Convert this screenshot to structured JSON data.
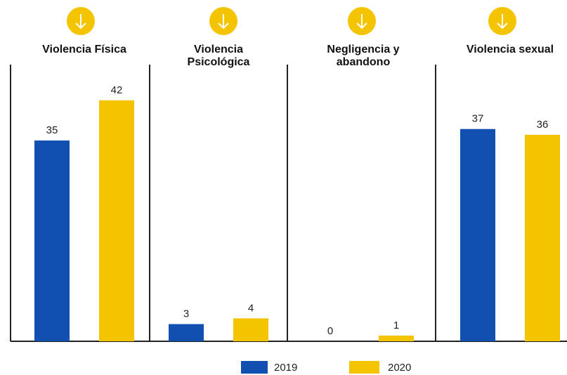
{
  "chart_data": {
    "type": "bar",
    "categories": [
      "Violencia Física",
      "Violencia Psicológica",
      "Negligencia y abandono",
      "Violencia sexual"
    ],
    "series": [
      {
        "name": "2019",
        "color": "#1150b0",
        "values": [
          35,
          3,
          0,
          37
        ]
      },
      {
        "name": "2020",
        "color": "#f5c400",
        "values": [
          42,
          4,
          1,
          36
        ]
      }
    ]
  }
}
